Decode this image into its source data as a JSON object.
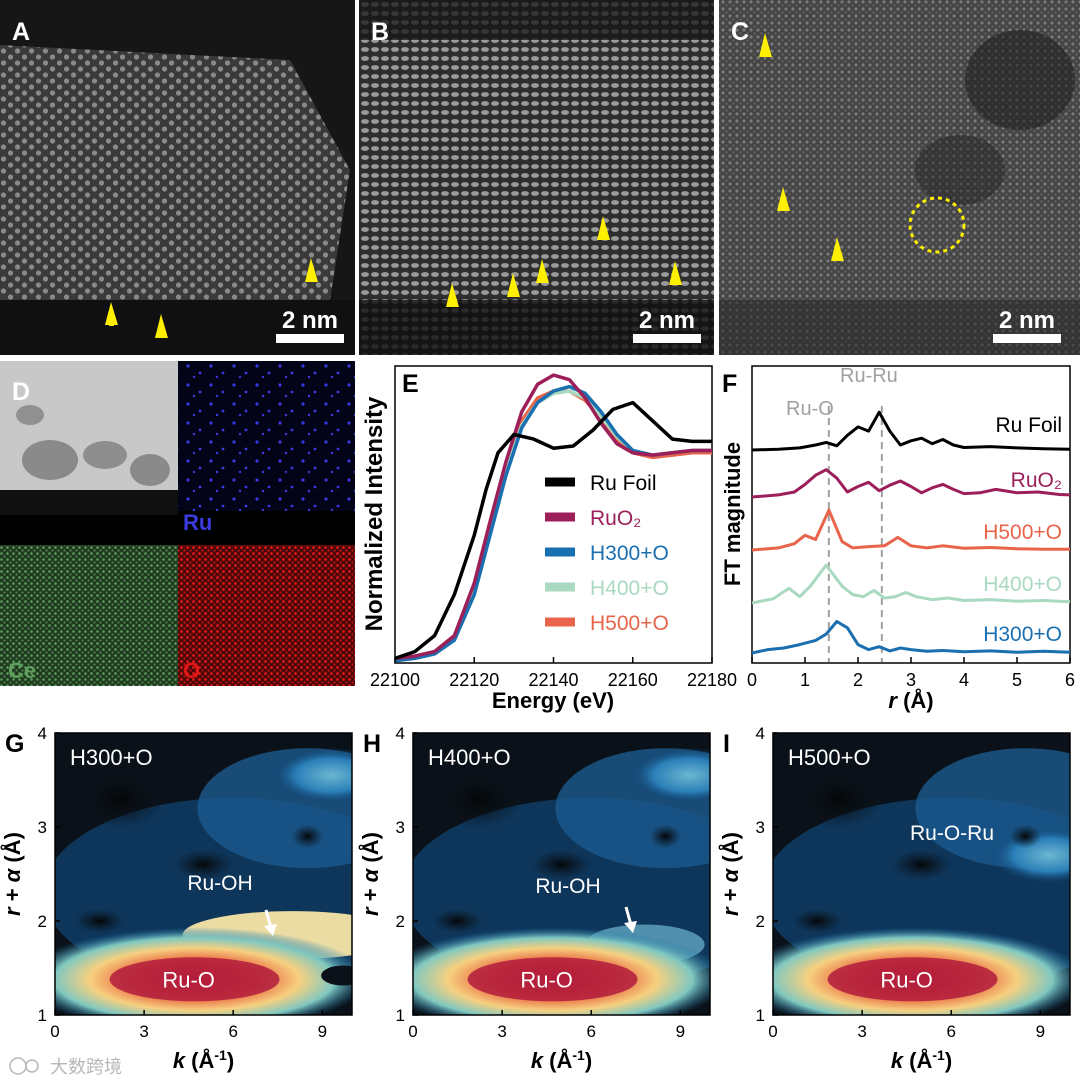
{
  "panels": {
    "A": {
      "label": "A",
      "scale_bar": "2 nm"
    },
    "B": {
      "label": "B",
      "scale_bar": "2 nm"
    },
    "C": {
      "label": "C",
      "scale_bar": "2 nm"
    },
    "D": {
      "label": "D",
      "maps": [
        "Ru",
        "Ce",
        "O"
      ]
    },
    "E": {
      "label": "E"
    },
    "F": {
      "label": "F",
      "annotations": [
        "Ru-O",
        "Ru-Ru"
      ]
    },
    "G": {
      "label": "G",
      "title": "H300+O",
      "annotations": [
        "Ru-OH",
        "Ru-O"
      ]
    },
    "H": {
      "label": "H",
      "title": "H400+O",
      "annotations": [
        "Ru-OH",
        "Ru-O"
      ]
    },
    "I": {
      "label": "I",
      "title": "H500+O",
      "annotations": [
        "Ru-O-Ru",
        "Ru-O"
      ]
    }
  },
  "colors": {
    "ru_foil": "#000000",
    "ruo2": "#9c1f5a",
    "h300": "#1a6fb0",
    "h400": "#a9d9c0",
    "h500": "#e8644a",
    "arrow": "#ffef00",
    "map_ru": "#3a3ae0",
    "map_ce": "#5fa05f",
    "map_o": "#e01818",
    "dashed": "#a0a0a0"
  },
  "watermark": "大数跨境",
  "chart_data": [
    {
      "panel": "E",
      "type": "line",
      "xlabel": "Energy (eV)",
      "ylabel": "Normalized Intensity",
      "xlim": [
        22100,
        22180
      ],
      "ylim": [
        0,
        1.3
      ],
      "xticks": [
        "22100",
        "22120",
        "22140",
        "22160",
        "22180"
      ],
      "series": [
        {
          "name": "Ru Foil",
          "color": "#000000",
          "x": [
            22100,
            22105,
            22110,
            22115,
            22120,
            22123,
            22126,
            22130,
            22135,
            22140,
            22145,
            22150,
            22155,
            22160,
            22165,
            22170,
            22175,
            22180
          ],
          "y": [
            0.02,
            0.05,
            0.12,
            0.3,
            0.56,
            0.76,
            0.92,
            1.0,
            0.98,
            0.94,
            0.95,
            1.02,
            1.11,
            1.14,
            1.06,
            0.98,
            0.97,
            0.97
          ]
        },
        {
          "name": "RuO₂",
          "color": "#9c1f5a",
          "x": [
            22100,
            22105,
            22110,
            22115,
            22120,
            22124,
            22128,
            22132,
            22136,
            22140,
            22144,
            22148,
            22152,
            22156,
            22160,
            22165,
            22170,
            22175,
            22180
          ],
          "y": [
            0.02,
            0.03,
            0.05,
            0.12,
            0.35,
            0.62,
            0.88,
            1.1,
            1.22,
            1.26,
            1.24,
            1.16,
            1.05,
            0.96,
            0.92,
            0.91,
            0.92,
            0.93,
            0.93
          ]
        },
        {
          "name": "H300+O",
          "color": "#1a6fb0",
          "x": [
            22100,
            22105,
            22110,
            22115,
            22120,
            22124,
            22128,
            22132,
            22136,
            22140,
            22144,
            22148,
            22152,
            22156,
            22160,
            22165,
            22170,
            22175,
            22180
          ],
          "y": [
            0.01,
            0.02,
            0.04,
            0.1,
            0.3,
            0.56,
            0.82,
            1.03,
            1.14,
            1.19,
            1.21,
            1.18,
            1.1,
            1.0,
            0.93,
            0.91,
            0.92,
            0.93,
            0.93
          ]
        },
        {
          "name": "H400+O",
          "color": "#a9d9c0",
          "x": [
            22100,
            22105,
            22110,
            22115,
            22120,
            22124,
            22128,
            22132,
            22136,
            22140,
            22144,
            22148,
            22152,
            22156,
            22160,
            22165,
            22170,
            22175,
            22180
          ],
          "y": [
            0.02,
            0.03,
            0.05,
            0.12,
            0.33,
            0.59,
            0.84,
            1.04,
            1.14,
            1.18,
            1.19,
            1.16,
            1.08,
            0.99,
            0.93,
            0.91,
            0.92,
            0.93,
            0.93
          ]
        },
        {
          "name": "H500+O",
          "color": "#e8644a",
          "x": [
            22100,
            22105,
            22110,
            22115,
            22120,
            22124,
            22128,
            22132,
            22136,
            22140,
            22144,
            22148,
            22152,
            22156,
            22160,
            22165,
            22170,
            22175,
            22180
          ],
          "y": [
            0.02,
            0.03,
            0.05,
            0.12,
            0.33,
            0.6,
            0.86,
            1.06,
            1.16,
            1.19,
            1.19,
            1.15,
            1.07,
            0.98,
            0.92,
            0.9,
            0.91,
            0.92,
            0.92
          ]
        }
      ]
    },
    {
      "panel": "F",
      "type": "line",
      "xlabel": "r (Å)",
      "ylabel": "FT magnitude",
      "xlim": [
        0,
        6
      ],
      "xticks": [
        "0",
        "1",
        "2",
        "3",
        "4",
        "5",
        "6"
      ],
      "reference_lines": [
        1.45,
        2.45
      ],
      "series": [
        {
          "name": "Ru Foil",
          "color": "#000000",
          "offset": 4.0,
          "x": [
            0,
            0.5,
            0.9,
            1.2,
            1.4,
            1.6,
            1.8,
            2.0,
            2.2,
            2.4,
            2.6,
            2.8,
            3.0,
            3.2,
            3.4,
            3.6,
            3.8,
            4.0,
            4.5,
            5.0,
            5.5,
            6.0
          ],
          "y": [
            0.0,
            0.02,
            0.05,
            0.12,
            0.18,
            0.1,
            0.35,
            0.55,
            0.45,
            0.9,
            0.45,
            0.12,
            0.22,
            0.28,
            0.15,
            0.25,
            0.12,
            0.06,
            0.08,
            0.05,
            0.03,
            0.02
          ]
        },
        {
          "name": "RuO₂",
          "color": "#9c1f5a",
          "offset": 3.0,
          "x": [
            0,
            0.5,
            0.8,
            1.0,
            1.2,
            1.4,
            1.6,
            1.8,
            2.0,
            2.2,
            2.4,
            2.6,
            2.8,
            3.0,
            3.2,
            3.4,
            3.6,
            3.8,
            4.0,
            4.3,
            4.6,
            5.0,
            5.4,
            5.8,
            6.0
          ],
          "y": [
            0.0,
            0.05,
            0.12,
            0.3,
            0.52,
            0.65,
            0.45,
            0.12,
            0.25,
            0.35,
            0.15,
            0.28,
            0.38,
            0.25,
            0.1,
            0.22,
            0.3,
            0.18,
            0.08,
            0.1,
            0.18,
            0.1,
            0.12,
            0.06,
            0.05
          ]
        },
        {
          "name": "H500+O",
          "color": "#e8644a",
          "offset": 2.0,
          "x": [
            0,
            0.5,
            0.8,
            1.0,
            1.2,
            1.45,
            1.7,
            1.9,
            2.2,
            2.5,
            2.75,
            3.0,
            3.3,
            3.6,
            4.0,
            4.5,
            5.0,
            5.5,
            6.0
          ],
          "y": [
            0.0,
            0.05,
            0.15,
            0.35,
            0.25,
            0.95,
            0.2,
            0.05,
            0.08,
            0.1,
            0.3,
            0.1,
            0.05,
            0.1,
            0.04,
            0.06,
            0.03,
            0.02,
            0.02
          ]
        },
        {
          "name": "H400+O",
          "color": "#a9d9c0",
          "offset": 1.0,
          "x": [
            0,
            0.4,
            0.7,
            0.9,
            1.1,
            1.4,
            1.7,
            1.9,
            2.1,
            2.3,
            2.5,
            2.7,
            2.9,
            3.1,
            3.4,
            3.7,
            4.0,
            4.5,
            5.0,
            5.5,
            6.0
          ],
          "y": [
            0.0,
            0.1,
            0.35,
            0.15,
            0.4,
            0.9,
            0.4,
            0.2,
            0.15,
            0.3,
            0.12,
            0.15,
            0.25,
            0.15,
            0.08,
            0.12,
            0.06,
            0.08,
            0.04,
            0.06,
            0.03
          ]
        },
        {
          "name": "H300+O",
          "color": "#1a6fb0",
          "offset": 0.0,
          "x": [
            0,
            0.3,
            0.6,
            0.9,
            1.2,
            1.4,
            1.6,
            1.8,
            2.0,
            2.2,
            2.4,
            2.6,
            2.8,
            3.0,
            3.3,
            3.6,
            4.0,
            4.5,
            5.0,
            5.5,
            6.0
          ],
          "y": [
            0.0,
            0.08,
            0.12,
            0.2,
            0.3,
            0.45,
            0.75,
            0.6,
            0.2,
            0.08,
            0.15,
            0.05,
            0.12,
            0.08,
            0.04,
            0.06,
            0.03,
            0.05,
            0.02,
            0.04,
            0.02
          ]
        }
      ]
    },
    {
      "panel": "G",
      "type": "heatmap",
      "title": "H300+O",
      "xlabel": "k (Å⁻¹)",
      "ylabel": "r + α (Å)",
      "xlim": [
        0,
        10
      ],
      "ylim": [
        1,
        4
      ],
      "xticks": [
        "0",
        "3",
        "6",
        "9"
      ],
      "yticks": [
        "1",
        "2",
        "3",
        "4"
      ]
    },
    {
      "panel": "H",
      "type": "heatmap",
      "title": "H400+O",
      "xlabel": "k (Å⁻¹)",
      "ylabel": "r + α (Å)",
      "xlim": [
        0,
        10
      ],
      "ylim": [
        1,
        4
      ],
      "xticks": [
        "0",
        "3",
        "6",
        "9"
      ],
      "yticks": [
        "1",
        "2",
        "3",
        "4"
      ]
    },
    {
      "panel": "I",
      "type": "heatmap",
      "title": "H500+O",
      "xlabel": "k (Å⁻¹)",
      "ylabel": "r + α (Å)",
      "xlim": [
        0,
        10
      ],
      "ylim": [
        1,
        4
      ],
      "xticks": [
        "0",
        "3",
        "6",
        "9"
      ],
      "yticks": [
        "1",
        "2",
        "3",
        "4"
      ]
    }
  ]
}
